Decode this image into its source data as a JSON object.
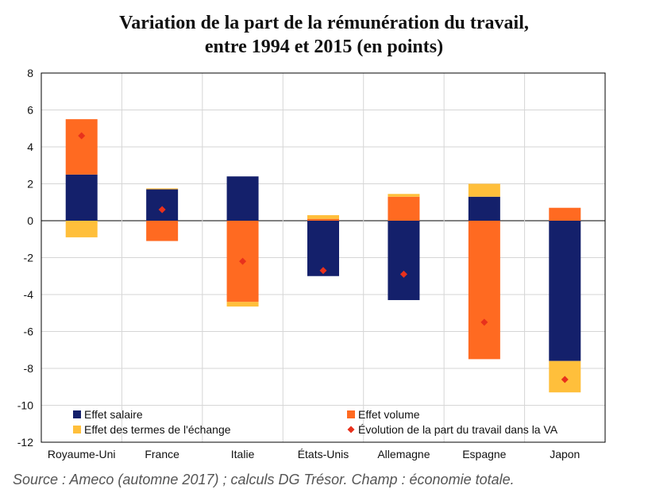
{
  "chart_data": {
    "type": "bar",
    "stacked": true,
    "title_lines": [
      "Variation de la part de la rémunération du travail,",
      "entre 1994 et 2015 (en points)"
    ],
    "categories": [
      "Royaume-Uni",
      "France",
      "Italie",
      "États-Unis",
      "Allemagne",
      "Espagne",
      "Japon"
    ],
    "series": [
      {
        "name": "Effet salaire",
        "color": "#14206b",
        "values": [
          2.5,
          1.7,
          2.4,
          -3.0,
          -4.3,
          1.3,
          -7.6
        ]
      },
      {
        "name": "Effet volume",
        "color": "#ff6a21",
        "values": [
          3.0,
          -1.1,
          -4.4,
          0.1,
          1.3,
          -7.5,
          0.7
        ]
      },
      {
        "name": "Effet des termes de l'échange",
        "color": "#ffbf3b",
        "values": [
          -0.9,
          0.05,
          -0.25,
          0.2,
          0.15,
          0.7,
          -1.7
        ]
      }
    ],
    "marker_series": {
      "name": "Évolution de la part du travail dans la VA",
      "color": "#e8311c",
      "values": [
        4.6,
        0.6,
        -2.2,
        -2.7,
        -2.9,
        -5.5,
        -8.6
      ]
    },
    "ylim": [
      -12,
      8
    ],
    "yticks": [
      8,
      6,
      4,
      2,
      0,
      -2,
      -4,
      -6,
      -8,
      -10,
      -12
    ],
    "grid": true,
    "legend_position": "bottom-inside"
  },
  "source": "Source : Ameco (automne 2017) ; calculs DG Trésor. Champ : économie totale."
}
